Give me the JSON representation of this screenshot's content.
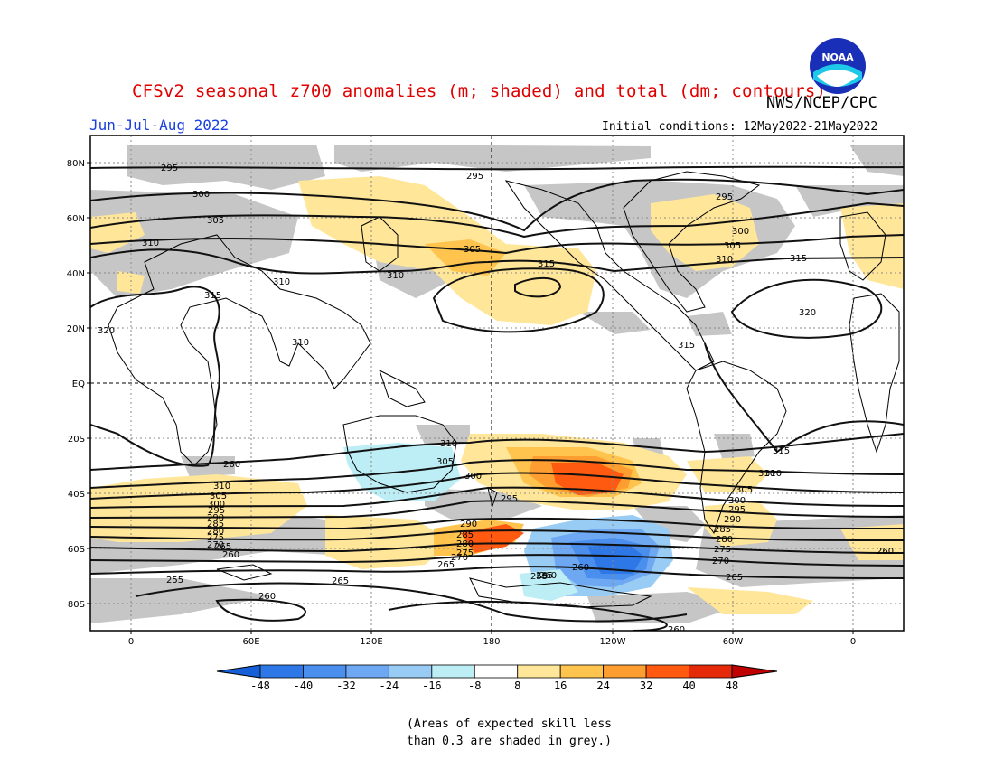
{
  "title": "CFSv2 seasonal z700 anomalies (m; shaded) and total (dm; contours)",
  "agency": "NWS/NCEP/CPC",
  "season": "Jun-Jul-Aug 2022",
  "initial_conditions": "Initial conditions: 12May2022-21May2022",
  "logo_text": "NOAA",
  "skill_note_line1": "(Areas of expected skill less",
  "skill_note_line2": "than 0.3 are shaded in grey.)",
  "lat_labels": [
    "80N",
    "60N",
    "40N",
    "20N",
    "EQ",
    "20S",
    "40S",
    "60S",
    "80S"
  ],
  "lon_labels": [
    "0",
    "60E",
    "120E",
    "180",
    "120W",
    "60W",
    "0"
  ],
  "colorbar": {
    "ticks": [
      "-48",
      "-40",
      "-32",
      "-24",
      "-16",
      "-8",
      "8",
      "16",
      "24",
      "32",
      "40",
      "48"
    ],
    "colors": [
      "#1560d8",
      "#2d78e6",
      "#4a8fee",
      "#6ea8f2",
      "#98ccf4",
      "#bdeef6",
      "#ffffff",
      "#ffe699",
      "#ffc44d",
      "#ff9e30",
      "#ff5a10",
      "#e52a0a",
      "#c00000"
    ]
  },
  "contour_labels": [
    "295",
    "295",
    "295",
    "300",
    "300",
    "305",
    "305",
    "305",
    "310",
    "310",
    "310",
    "310",
    "315",
    "315",
    "315",
    "320",
    "320",
    "310",
    "315",
    "310",
    "315",
    "310",
    "305",
    "300",
    "295",
    "290",
    "285",
    "280",
    "275",
    "270",
    "265",
    "260",
    "255",
    "265",
    "260",
    "310",
    "305",
    "300",
    "295",
    "290",
    "285",
    "280",
    "275",
    "270",
    "265",
    "260",
    "305",
    "300",
    "295",
    "290",
    "285",
    "280",
    "275",
    "270",
    "265",
    "260",
    "260",
    "255",
    "265",
    "260",
    "260",
    "310"
  ],
  "colors": {
    "title": "#e00000",
    "season": "#1a3fe0",
    "skill_grey": "#c4c4c4",
    "positive_light": "#ffe699",
    "positive_mid": "#ffc44d",
    "positive_strong": "#ff5a10",
    "negative_light": "#bdeef6",
    "negative_mid": "#6ea8f2",
    "negative_strong": "#2d78e6"
  }
}
